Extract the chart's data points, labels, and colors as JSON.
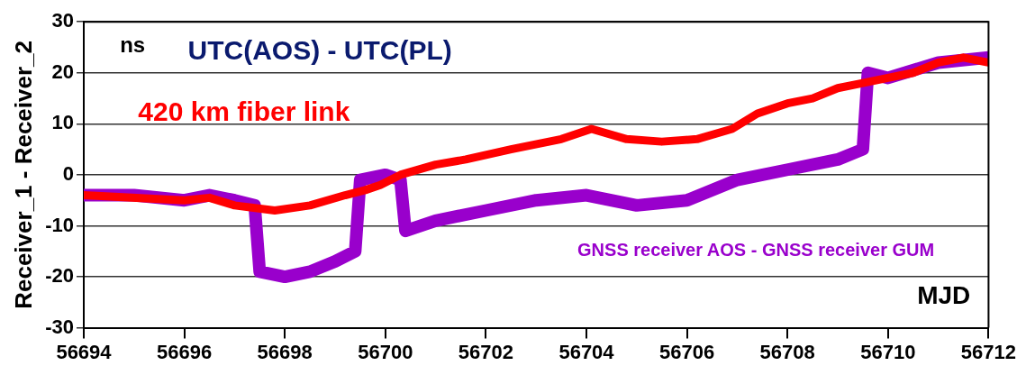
{
  "chart_data": {
    "type": "line",
    "title": "UTC(AOS) - UTC(PL)",
    "xlabel": "MJD",
    "ylabel": "Receiver_1 - Receiver_2",
    "annotations": [
      "ns"
    ],
    "xlim": [
      56694,
      56712
    ],
    "xticks": [
      56694,
      56696,
      56698,
      56700,
      56702,
      56704,
      56706,
      56708,
      56710,
      56712
    ],
    "ylim": [
      -30,
      30
    ],
    "yticks": [
      -30,
      -20,
      -10,
      0,
      10,
      20,
      30
    ],
    "grid": "y",
    "legend": false,
    "marker": "none",
    "line_style": "solid",
    "series": [
      {
        "name": "420 km fiber link",
        "color": "#ff0000",
        "x": [
          56694,
          56696,
          56696.5,
          56697,
          56697.8,
          56698.5,
          56699.2,
          56699.6,
          56699.9,
          56700.3,
          56701,
          56701.6,
          56702.5,
          56703.5,
          56704.1,
          56704.8,
          56705.5,
          56706.2,
          56706.9,
          56707.4,
          56708,
          56708.5,
          56709,
          56709.5,
          56710,
          56710.5,
          56711,
          56711.5,
          56712
        ],
        "values": [
          -4,
          -5,
          -4.5,
          -6,
          -7,
          -6,
          -4,
          -3,
          -2,
          0,
          2,
          3,
          5,
          7,
          9,
          7,
          6.5,
          7,
          9,
          12,
          14,
          15,
          17,
          18,
          19,
          20,
          22,
          23,
          22
        ]
      },
      {
        "name": "GNSS receiver AOS - GNSS receiver GUM",
        "color": "#9900cc",
        "x": [
          56694,
          56695,
          56696,
          56696.5,
          56697,
          56697.4,
          56697.5,
          56698,
          56698.5,
          56699,
          56699.4,
          56699.5,
          56700,
          56700.3,
          56700.4,
          56701,
          56702,
          56703,
          56704,
          56705,
          56706,
          56707,
          56708,
          56709,
          56709.5,
          56709.6,
          56710,
          56711,
          56712
        ],
        "values": [
          -4,
          -4,
          -5,
          -4,
          -5,
          -6,
          -19,
          -20,
          -19,
          -17,
          -15,
          -1,
          0,
          -1,
          -11,
          -9,
          -7,
          -5,
          -4,
          -6,
          -5,
          -1,
          1,
          3,
          5,
          20,
          19,
          22,
          23
        ]
      }
    ]
  }
}
